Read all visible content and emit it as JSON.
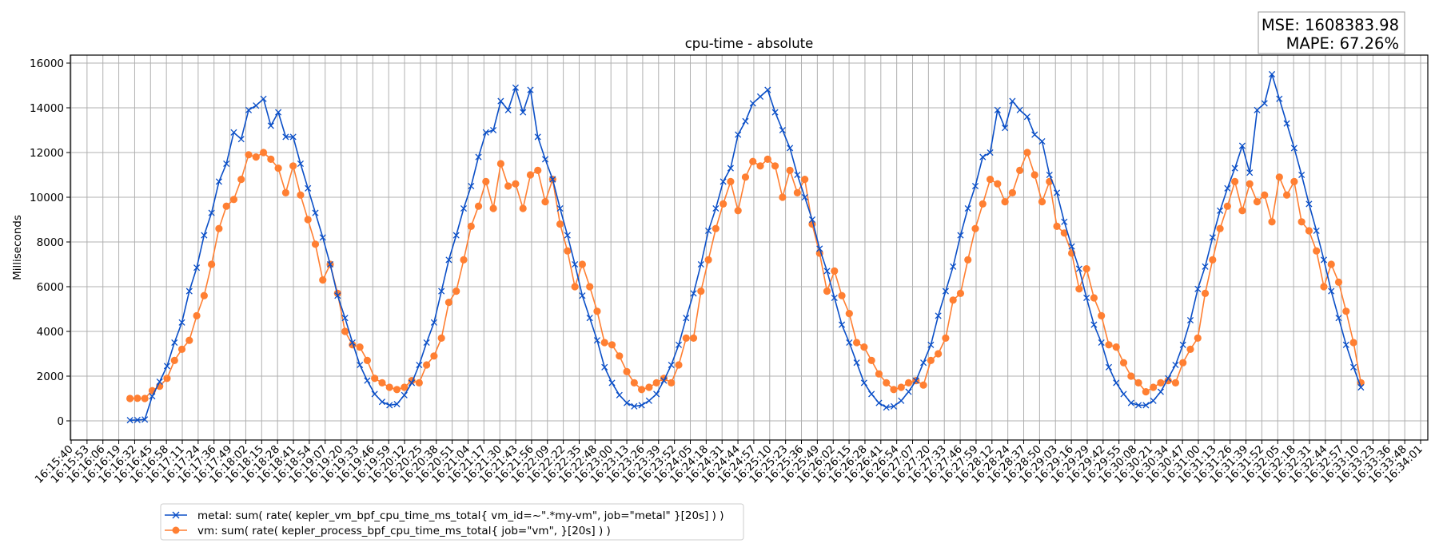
{
  "chart_data": {
    "type": "line",
    "title": "cpu-time - absolute",
    "xlabel": "",
    "ylabel": "Milliseconds",
    "ylim": [
      -857,
      16357
    ],
    "yticks": [
      0,
      2000,
      4000,
      6000,
      8000,
      10000,
      12000,
      14000,
      16000
    ],
    "xrange": [
      "16:15:40",
      "16:34:01"
    ],
    "xticks": [
      "16:15:40",
      "16:15:53",
      "16:16:06",
      "16:16:19",
      "16:16:32",
      "16:16:45",
      "16:16:58",
      "16:17:11",
      "16:17:24",
      "16:17:36",
      "16:17:49",
      "16:18:02",
      "16:18:15",
      "16:18:28",
      "16:18:41",
      "16:18:54",
      "16:19:07",
      "16:19:20",
      "16:19:33",
      "16:19:46",
      "16:19:59",
      "16:20:12",
      "16:20:25",
      "16:20:38",
      "16:20:51",
      "16:21:04",
      "16:21:17",
      "16:21:30",
      "16:21:43",
      "16:21:56",
      "16:22:09",
      "16:22:22",
      "16:22:35",
      "16:22:48",
      "16:23:00",
      "16:23:13",
      "16:23:26",
      "16:23:39",
      "16:23:52",
      "16:24:05",
      "16:24:18",
      "16:24:31",
      "16:24:44",
      "16:24:57",
      "16:25:10",
      "16:25:23",
      "16:25:36",
      "16:25:49",
      "16:26:02",
      "16:26:15",
      "16:26:28",
      "16:26:41",
      "16:26:54",
      "16:27:07",
      "16:27:20",
      "16:27:33",
      "16:27:46",
      "16:27:59",
      "16:28:12",
      "16:28:24",
      "16:28:37",
      "16:28:50",
      "16:29:03",
      "16:29:16",
      "16:29:29",
      "16:29:42",
      "16:29:55",
      "16:30:08",
      "16:30:21",
      "16:30:34",
      "16:30:47",
      "16:31:00",
      "16:31:13",
      "16:31:26",
      "16:31:39",
      "16:31:52",
      "16:32:05",
      "16:32:18",
      "16:32:31",
      "16:32:44",
      "16:32:57",
      "16:33:10",
      "16:33:23",
      "16:33:36",
      "16:33:48",
      "16:34:01"
    ],
    "grid": true,
    "legend_position": "below-left",
    "x_start": "16:16:28",
    "x_step_seconds": 6.05,
    "series": [
      {
        "name": "metal: sum( rate( kepler_vm_bpf_cpu_time_ms_total{ vm_id=~\".*my-vm\", job=\"metal\" }[20s] ) )",
        "color": "#0b4fc7",
        "marker": "x",
        "values": [
          30,
          40,
          60,
          1100,
          1750,
          2450,
          3500,
          4400,
          5800,
          6850,
          8300,
          9300,
          10700,
          11500,
          12900,
          12600,
          13900,
          14100,
          14400,
          13200,
          13800,
          12700,
          12700,
          11500,
          10400,
          9300,
          8200,
          7000,
          5600,
          4600,
          3500,
          2500,
          1800,
          1200,
          850,
          700,
          750,
          1150,
          1700,
          2500,
          3500,
          4400,
          5800,
          7200,
          8300,
          9500,
          10500,
          11800,
          12900,
          13000,
          14300,
          13900,
          14900,
          13800,
          14800,
          12700,
          11700,
          10800,
          9500,
          8300,
          7000,
          5600,
          4600,
          3600,
          2400,
          1700,
          1150,
          800,
          650,
          700,
          900,
          1200,
          1800,
          2500,
          3400,
          4600,
          5700,
          7000,
          8500,
          9500,
          10700,
          11300,
          12800,
          13400,
          14200,
          14500,
          14800,
          13800,
          13000,
          12200,
          11000,
          10000,
          9000,
          7700,
          6700,
          5500,
          4300,
          3500,
          2600,
          1700,
          1200,
          800,
          600,
          650,
          900,
          1300,
          1800,
          2600,
          3400,
          4700,
          5800,
          6900,
          8300,
          9500,
          10500,
          11800,
          12000,
          13900,
          13100,
          14300,
          13900,
          13600,
          12800,
          12500,
          11000,
          10200,
          8900,
          7800,
          6800,
          5500,
          4300,
          3500,
          2400,
          1700,
          1200,
          800,
          700,
          700,
          900,
          1300,
          1900,
          2500,
          3400,
          4500,
          5900,
          6900,
          8200,
          9400,
          10400,
          11300,
          12300,
          11100,
          13900,
          14200,
          15500,
          14400,
          13300,
          12200,
          11000,
          9700,
          8500,
          7200,
          5800,
          4600,
          3400,
          2400,
          1500
        ]
      },
      {
        "name": "vm: sum( rate( kepler_process_bpf_cpu_time_ms_total{ job=\"vm\", }[20s] ) )",
        "color": "#ff7f32",
        "marker": "o",
        "values": [
          1000,
          1010,
          1000,
          1350,
          1550,
          1900,
          2700,
          3200,
          3600,
          4700,
          5600,
          7000,
          8600,
          9600,
          9900,
          10800,
          11900,
          11800,
          12000,
          11700,
          11300,
          10200,
          11400,
          10100,
          9000,
          7900,
          6300,
          7000,
          5700,
          4000,
          3400,
          3300,
          2700,
          1900,
          1700,
          1500,
          1400,
          1500,
          1800,
          1700,
          2500,
          2900,
          3700,
          5300,
          5800,
          7200,
          8700,
          9600,
          10700,
          9500,
          11500,
          10500,
          10600,
          9500,
          11000,
          11200,
          9800,
          10800,
          8800,
          7600,
          6000,
          7000,
          6000,
          4900,
          3500,
          3400,
          2900,
          2200,
          1700,
          1400,
          1500,
          1700,
          1900,
          1700,
          2500,
          3700,
          3700,
          5800,
          7200,
          8600,
          9700,
          10700,
          9400,
          10900,
          11600,
          11400,
          11700,
          11400,
          10000,
          11200,
          10200,
          10800,
          8800,
          7500,
          5800,
          6700,
          5600,
          4800,
          3500,
          3300,
          2700,
          2100,
          1700,
          1400,
          1500,
          1700,
          1800,
          1600,
          2700,
          3000,
          3700,
          5400,
          5700,
          7200,
          8600,
          9700,
          10800,
          10600,
          9800,
          10200,
          11200,
          12000,
          11000,
          9800,
          10700,
          8700,
          8400,
          7500,
          5900,
          6800,
          5500,
          4700,
          3400,
          3300,
          2600,
          2000,
          1700,
          1300,
          1500,
          1700,
          1800,
          1700,
          2600,
          3200,
          3700,
          5700,
          7200,
          8600,
          9600,
          10700,
          9400,
          10600,
          9800,
          10100,
          8900,
          10900,
          10100,
          10700,
          8900,
          8500,
          7600,
          6000,
          7000,
          6200,
          4900,
          3500,
          1700
        ]
      }
    ]
  },
  "metrics": {
    "mse": "MSE: 1608383.98",
    "mape": "MAPE: 67.26%"
  }
}
